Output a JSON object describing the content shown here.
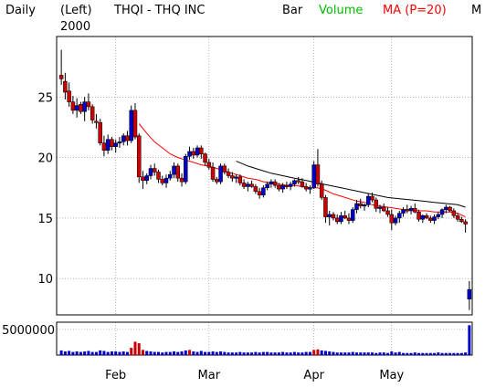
{
  "header": {
    "period": "Daily",
    "axis_side": "(Left)",
    "symbol": "THQI - THQ INC",
    "style": "Bar",
    "volume_label": "Volume",
    "ma_label": "MA (P=20)",
    "right_edge": "M",
    "year": "2000"
  },
  "colors": {
    "up": "#0000cc",
    "down": "#cc0000",
    "volume_bar": "#0000cc",
    "volume_big": "#cc0000",
    "ma20": "#ff0000",
    "ma50": "#000000",
    "volume_label": "#00bb00"
  },
  "chart_data": [
    {
      "type": "candlestick",
      "title": "THQI - THQ INC",
      "ylim": [
        7,
        30
      ],
      "yticks": [
        10,
        15,
        20,
        25
      ],
      "ytick_labels": [
        "10",
        "15",
        "20",
        "25"
      ],
      "x_month_labels": [
        {
          "label": "Feb",
          "day_index": 14
        },
        {
          "label": "Mar",
          "day_index": 38
        },
        {
          "label": "Apr",
          "day_index": 65
        },
        {
          "label": "May",
          "day_index": 85
        }
      ],
      "grid": true,
      "days": 106,
      "ohlc": [
        [
          26.8,
          28.9,
          26.0,
          26.5
        ],
        [
          26.3,
          27.0,
          24.8,
          25.4
        ],
        [
          25.5,
          26.2,
          24.2,
          24.6
        ],
        [
          24.6,
          25.1,
          23.6,
          23.9
        ],
        [
          23.9,
          24.9,
          23.3,
          24.3
        ],
        [
          24.4,
          24.6,
          23.6,
          23.8
        ],
        [
          23.8,
          25.0,
          23.0,
          24.6
        ],
        [
          24.6,
          25.3,
          23.9,
          24.2
        ],
        [
          24.2,
          24.4,
          22.8,
          23.1
        ],
        [
          23.0,
          23.6,
          22.4,
          22.9
        ],
        [
          22.9,
          23.2,
          21.0,
          21.2
        ],
        [
          21.2,
          21.8,
          20.1,
          20.6
        ],
        [
          20.6,
          21.9,
          20.3,
          21.5
        ],
        [
          21.5,
          21.7,
          20.6,
          20.9
        ],
        [
          20.9,
          21.5,
          20.4,
          21.2
        ],
        [
          21.2,
          21.7,
          20.8,
          21.3
        ],
        [
          21.3,
          22.0,
          21.0,
          21.8
        ],
        [
          21.8,
          22.2,
          21.0,
          21.4
        ],
        [
          21.4,
          24.3,
          21.2,
          23.9
        ],
        [
          23.9,
          24.5,
          21.5,
          21.7
        ],
        [
          21.8,
          22.0,
          17.9,
          18.4
        ],
        [
          18.4,
          18.9,
          17.4,
          18.1
        ],
        [
          18.1,
          18.7,
          17.8,
          18.5
        ],
        [
          18.5,
          19.4,
          18.2,
          19.1
        ],
        [
          19.1,
          19.5,
          18.5,
          18.8
        ],
        [
          18.8,
          19.0,
          17.9,
          18.2
        ],
        [
          18.2,
          18.5,
          17.7,
          17.9
        ],
        [
          17.9,
          18.6,
          17.5,
          18.3
        ],
        [
          18.3,
          18.9,
          18.1,
          18.6
        ],
        [
          18.6,
          19.6,
          18.3,
          19.3
        ],
        [
          19.3,
          19.5,
          18.0,
          18.3
        ],
        [
          18.3,
          18.7,
          17.6,
          18.0
        ],
        [
          18.0,
          20.3,
          17.8,
          20.1
        ],
        [
          20.1,
          20.9,
          19.8,
          20.5
        ],
        [
          20.5,
          20.8,
          19.9,
          20.2
        ],
        [
          20.2,
          21.0,
          20.0,
          20.8
        ],
        [
          20.8,
          21.0,
          19.9,
          20.3
        ],
        [
          20.3,
          20.4,
          19.3,
          19.6
        ],
        [
          19.6,
          19.9,
          19.0,
          19.2
        ],
        [
          19.2,
          19.6,
          18.0,
          18.2
        ],
        [
          18.2,
          18.4,
          17.8,
          18.0
        ],
        [
          18.0,
          19.5,
          17.8,
          19.3
        ],
        [
          19.3,
          19.5,
          18.6,
          18.8
        ],
        [
          18.8,
          19.1,
          18.3,
          18.5
        ],
        [
          18.5,
          18.8,
          18.0,
          18.3
        ],
        [
          18.3,
          18.6,
          17.9,
          18.4
        ],
        [
          18.4,
          18.6,
          17.7,
          17.9
        ],
        [
          17.9,
          18.2,
          17.4,
          17.6
        ],
        [
          17.6,
          18.0,
          17.2,
          17.8
        ],
        [
          17.8,
          18.1,
          17.5,
          17.6
        ],
        [
          17.6,
          17.8,
          17.0,
          17.2
        ],
        [
          17.2,
          17.5,
          16.6,
          16.9
        ],
        [
          16.9,
          17.7,
          16.7,
          17.5
        ],
        [
          17.5,
          18.0,
          17.3,
          17.8
        ],
        [
          17.8,
          18.2,
          17.5,
          18.0
        ],
        [
          18.0,
          18.2,
          17.5,
          17.7
        ],
        [
          17.7,
          17.9,
          17.2,
          17.4
        ],
        [
          17.4,
          17.9,
          17.1,
          17.7
        ],
        [
          17.7,
          18.0,
          17.4,
          17.6
        ],
        [
          17.6,
          18.0,
          17.3,
          17.8
        ],
        [
          17.8,
          18.2,
          17.6,
          18.1
        ],
        [
          18.1,
          18.4,
          17.8,
          18.0
        ],
        [
          18.0,
          18.3,
          17.5,
          17.6
        ],
        [
          17.6,
          17.9,
          17.2,
          17.4
        ],
        [
          17.4,
          17.7,
          17.0,
          17.5
        ],
        [
          17.5,
          19.7,
          17.4,
          19.4
        ],
        [
          19.4,
          20.7,
          17.6,
          17.8
        ],
        [
          17.8,
          18.1,
          16.5,
          16.7
        ],
        [
          16.7,
          16.9,
          14.6,
          15.1
        ],
        [
          15.1,
          15.6,
          14.4,
          15.3
        ],
        [
          15.3,
          15.5,
          14.8,
          15.0
        ],
        [
          15.0,
          15.3,
          14.5,
          14.7
        ],
        [
          14.7,
          15.5,
          14.5,
          15.2
        ],
        [
          15.2,
          15.6,
          14.9,
          15.0
        ],
        [
          15.0,
          15.4,
          14.5,
          14.8
        ],
        [
          14.8,
          15.9,
          14.6,
          15.7
        ],
        [
          15.7,
          16.5,
          15.4,
          16.2
        ],
        [
          16.2,
          16.6,
          15.8,
          16.0
        ],
        [
          16.0,
          16.2,
          15.6,
          16.1
        ],
        [
          16.1,
          17.0,
          15.9,
          16.8
        ],
        [
          16.8,
          17.1,
          16.3,
          16.5
        ],
        [
          16.5,
          16.7,
          15.5,
          15.8
        ],
        [
          15.8,
          16.1,
          15.4,
          15.9
        ],
        [
          15.9,
          16.2,
          15.5,
          15.6
        ],
        [
          15.6,
          15.9,
          15.1,
          15.3
        ],
        [
          15.3,
          15.7,
          14.0,
          14.6
        ],
        [
          14.6,
          15.2,
          14.4,
          15.0
        ],
        [
          15.0,
          15.6,
          14.6,
          15.4
        ],
        [
          15.4,
          15.9,
          15.1,
          15.7
        ],
        [
          15.7,
          16.1,
          15.4,
          15.6
        ],
        [
          15.6,
          16.0,
          15.3,
          15.8
        ],
        [
          15.8,
          16.2,
          15.4,
          15.5
        ],
        [
          15.5,
          15.7,
          14.7,
          14.9
        ],
        [
          14.9,
          15.3,
          14.6,
          15.2
        ],
        [
          15.2,
          15.4,
          14.9,
          15.0
        ],
        [
          15.0,
          15.2,
          14.6,
          14.8
        ],
        [
          14.8,
          15.3,
          14.5,
          15.1
        ],
        [
          15.1,
          15.5,
          14.9,
          15.3
        ],
        [
          15.3,
          15.8,
          15.0,
          15.7
        ],
        [
          15.7,
          16.1,
          15.4,
          15.9
        ],
        [
          15.9,
          16.0,
          15.5,
          15.6
        ],
        [
          15.6,
          15.8,
          15.0,
          15.2
        ],
        [
          15.2,
          15.4,
          14.7,
          14.9
        ],
        [
          14.9,
          15.1,
          14.6,
          14.7
        ],
        [
          14.7,
          14.9,
          13.8,
          14.5
        ],
        [
          8.3,
          9.8,
          7.4,
          9.1
        ]
      ],
      "ma20": [
        [
          20,
          22.8
        ],
        [
          22,
          22.0
        ],
        [
          24,
          21.3
        ],
        [
          26,
          20.8
        ],
        [
          28,
          20.3
        ],
        [
          30,
          20.0
        ],
        [
          32,
          19.8
        ],
        [
          34,
          19.6
        ],
        [
          36,
          19.4
        ],
        [
          38,
          19.3
        ],
        [
          40,
          19.1
        ],
        [
          42,
          18.9
        ],
        [
          44,
          18.7
        ],
        [
          46,
          18.5
        ],
        [
          48,
          18.3
        ],
        [
          50,
          18.2
        ],
        [
          52,
          18.0
        ],
        [
          54,
          17.9
        ],
        [
          56,
          17.8
        ],
        [
          58,
          17.7
        ],
        [
          60,
          17.7
        ],
        [
          62,
          17.6
        ],
        [
          64,
          17.5
        ],
        [
          66,
          17.5
        ],
        [
          68,
          17.3
        ],
        [
          70,
          17.0
        ],
        [
          72,
          16.8
        ],
        [
          74,
          16.6
        ],
        [
          76,
          16.4
        ],
        [
          78,
          16.3
        ],
        [
          80,
          16.1
        ],
        [
          82,
          16.0
        ],
        [
          84,
          15.9
        ],
        [
          86,
          15.8
        ],
        [
          88,
          15.7
        ],
        [
          90,
          15.7
        ],
        [
          92,
          15.6
        ],
        [
          94,
          15.6
        ],
        [
          96,
          15.5
        ],
        [
          98,
          15.5
        ],
        [
          100,
          15.5
        ],
        [
          102,
          15.4
        ],
        [
          104,
          15.1
        ]
      ],
      "ma50": [
        [
          45,
          19.7
        ],
        [
          48,
          19.3
        ],
        [
          51,
          19.0
        ],
        [
          54,
          18.7
        ],
        [
          57,
          18.5
        ],
        [
          60,
          18.3
        ],
        [
          63,
          18.1
        ],
        [
          66,
          17.9
        ],
        [
          69,
          17.7
        ],
        [
          72,
          17.5
        ],
        [
          75,
          17.3
        ],
        [
          78,
          17.1
        ],
        [
          81,
          16.9
        ],
        [
          84,
          16.7
        ],
        [
          87,
          16.6
        ],
        [
          90,
          16.5
        ],
        [
          93,
          16.4
        ],
        [
          96,
          16.3
        ],
        [
          99,
          16.2
        ],
        [
          102,
          16.1
        ],
        [
          104,
          15.9
        ]
      ]
    },
    {
      "type": "bar",
      "title": "Volume",
      "ytick_labels": [
        "5000000"
      ],
      "yticks": [
        5000000
      ],
      "ylim": [
        0,
        6400000
      ],
      "volume": [
        900000,
        700000,
        800000,
        600000,
        700000,
        600000,
        700000,
        800000,
        600000,
        600000,
        900000,
        800000,
        600000,
        700000,
        700000,
        600000,
        700000,
        600000,
        1400000,
        2600000,
        2300000,
        1000000,
        800000,
        700000,
        600000,
        600000,
        500000,
        600000,
        600000,
        700000,
        600000,
        700000,
        900000,
        1000000,
        700000,
        600000,
        800000,
        600000,
        600000,
        700000,
        600000,
        700000,
        600000,
        500000,
        500000,
        500000,
        600000,
        500000,
        500000,
        500000,
        600000,
        500000,
        600000,
        600000,
        500000,
        500000,
        500000,
        600000,
        500000,
        500000,
        600000,
        500000,
        500000,
        600000,
        600000,
        1000000,
        1100000,
        900000,
        800000,
        700000,
        600000,
        500000,
        500000,
        500000,
        500000,
        600000,
        500000,
        500000,
        500000,
        500000,
        500000,
        400000,
        500000,
        500000,
        400000,
        700000,
        500000,
        600000,
        400000,
        400000,
        400000,
        500000,
        400000,
        400000,
        400000,
        400000,
        400000,
        500000,
        400000,
        400000,
        400000,
        400000,
        400000,
        400000,
        500000,
        5800000
      ]
    }
  ]
}
